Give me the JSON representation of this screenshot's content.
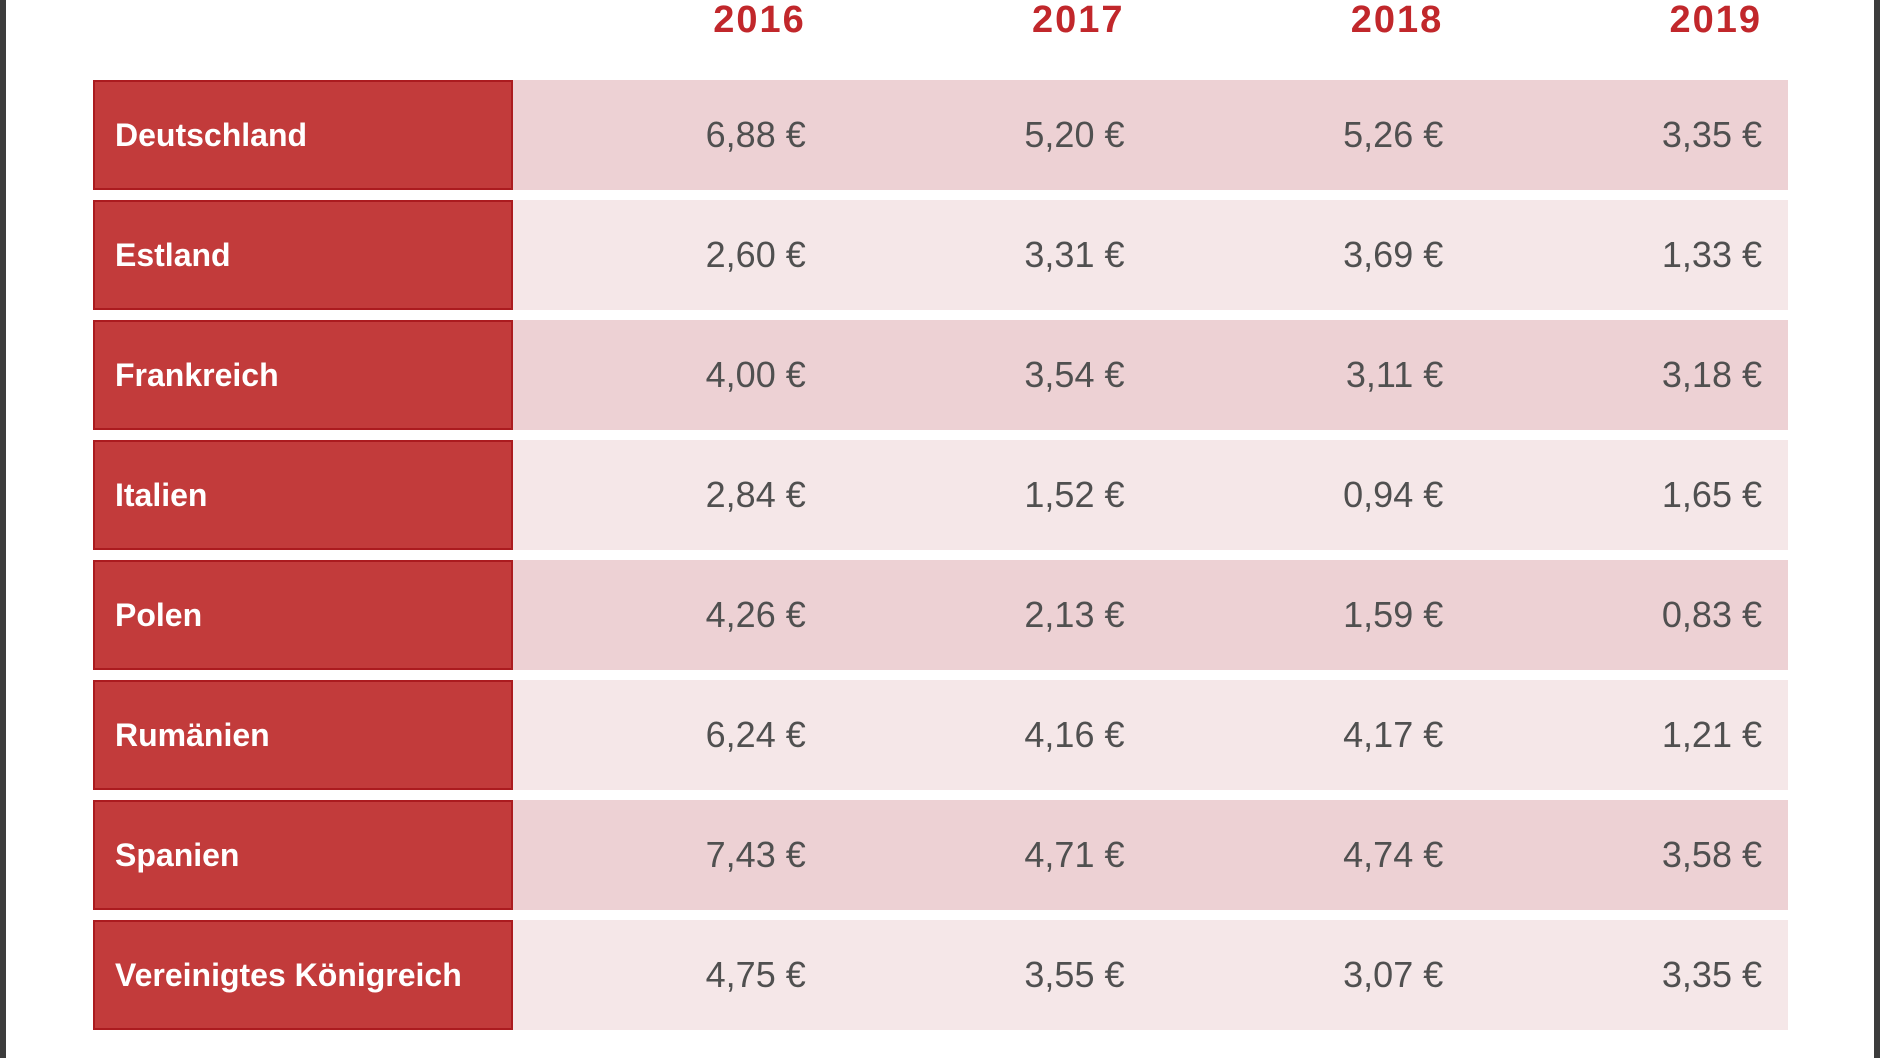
{
  "chart_data": {
    "type": "table",
    "unit": "€",
    "columns": [
      "2016",
      "2017",
      "2018",
      "2019"
    ],
    "rows": [
      {
        "label": "Deutschland",
        "values": [
          "6,88 €",
          "5,20 €",
          "5,26 €",
          "3,35 €"
        ]
      },
      {
        "label": "Estland",
        "values": [
          "2,60 €",
          "3,31 €",
          "3,69 €",
          "1,33 €"
        ]
      },
      {
        "label": "Frankreich",
        "values": [
          "4,00 €",
          "3,54 €",
          "3,11 €",
          "3,18 €"
        ]
      },
      {
        "label": "Italien",
        "values": [
          "2,84 €",
          "1,52 €",
          "0,94 €",
          "1,65 €"
        ]
      },
      {
        "label": "Polen",
        "values": [
          "4,26 €",
          "2,13 €",
          "1,59 €",
          "0,83 €"
        ]
      },
      {
        "label": "Rumänien",
        "values": [
          "6,24 €",
          "4,16 €",
          "4,17 €",
          "1,21 €"
        ]
      },
      {
        "label": "Spanien",
        "values": [
          "7,43 €",
          "4,71 €",
          "4,74 €",
          "3,58 €"
        ]
      },
      {
        "label": "Vereinigtes Königreich",
        "values": [
          "4,75 €",
          "3,55 €",
          "3,07 €",
          "3,35 €"
        ]
      }
    ],
    "layout": {
      "row_shading_alternates": true,
      "first_row_shade": "dark",
      "grid": "off",
      "legend": "none"
    }
  },
  "colors": {
    "page_bg": "#ffffff",
    "frame_border": "#3c3c3c",
    "header_text": "#c1272b",
    "label_cell_bg": "#c23b3b",
    "label_cell_border": "#ab1b1f",
    "label_text": "#ffffff",
    "row_dark_bg": "#edd1d4",
    "row_light_bg": "#f5e7e8",
    "value_text": "#505050"
  }
}
